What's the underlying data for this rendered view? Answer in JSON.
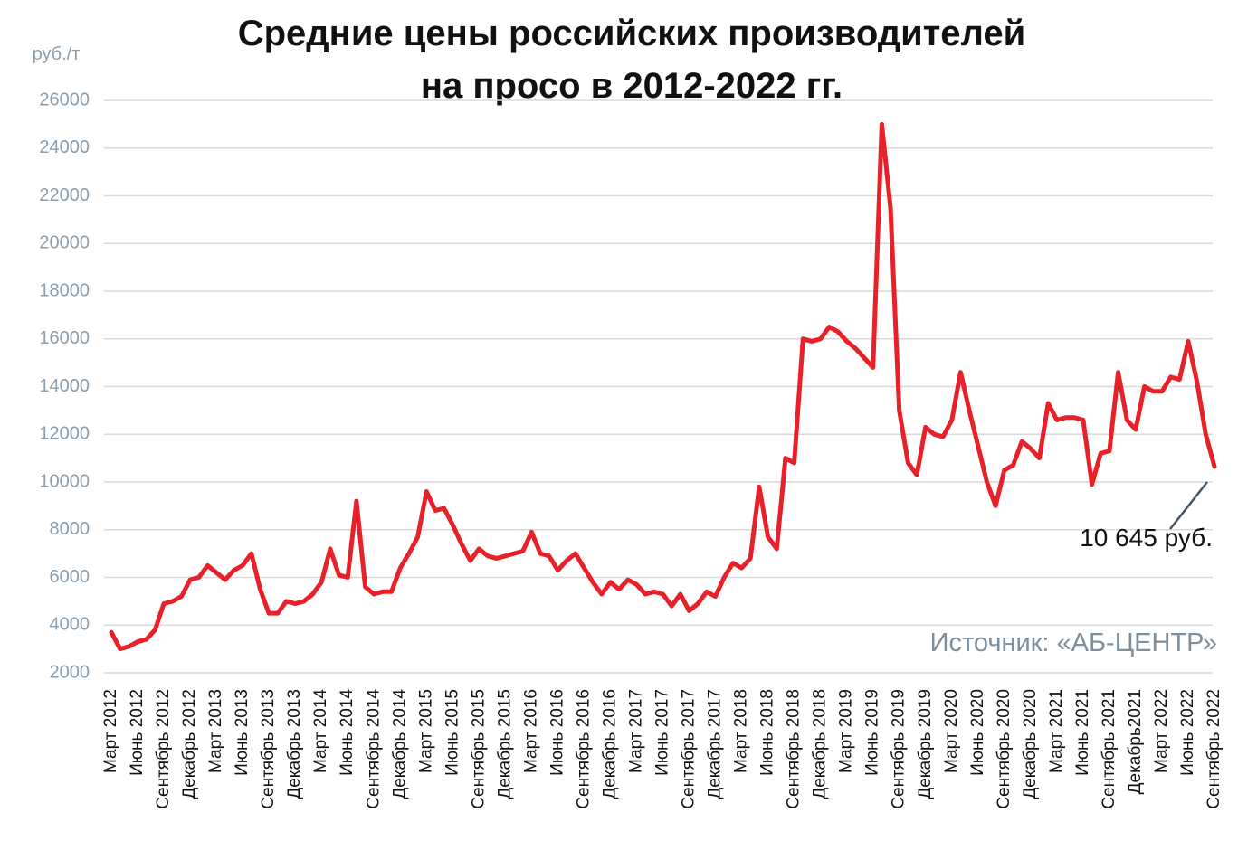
{
  "chart_data": {
    "type": "line",
    "title": [
      "Средние цены российских производителей",
      "на просо в 2012-2022 гг."
    ],
    "y_axis_label": "руб./т",
    "source": "Источник: «АБ-ЦЕНТР»",
    "color": "#e8202a",
    "grid": true,
    "ylim": [
      2000,
      26000
    ],
    "yticks": [
      2000,
      4000,
      6000,
      8000,
      10000,
      12000,
      14000,
      16000,
      18000,
      20000,
      22000,
      24000,
      26000
    ],
    "categories": [
      "Март 2012",
      null,
      null,
      "Июнь 2012",
      null,
      null,
      "Сентябрь 2012",
      null,
      null,
      "Декабрь 2012",
      null,
      null,
      "Март 2013",
      null,
      null,
      "Июнь 2013",
      null,
      null,
      "Сентябрь 2013",
      null,
      null,
      "Декабрь 2013",
      null,
      null,
      "Март 2014",
      null,
      null,
      "Июнь 2014",
      null,
      null,
      "Сентябрь 2014",
      null,
      null,
      "Декабрь 2014",
      null,
      null,
      "Март 2015",
      null,
      null,
      "Июнь 2015",
      null,
      null,
      "Сентябрь 2015",
      null,
      null,
      "Декабрь 2015",
      null,
      null,
      "Март 2016",
      null,
      null,
      "Июнь 2016",
      null,
      null,
      "Сентябрь 2016",
      null,
      null,
      "Декабрь 2016",
      null,
      null,
      "Март 2017",
      null,
      null,
      "Июнь 2017",
      null,
      null,
      "Сентябрь 2017",
      null,
      null,
      "Декабрь 2017",
      null,
      null,
      "Март 2018",
      null,
      null,
      "Июнь 2018",
      null,
      null,
      "Сентябрь 2018",
      null,
      null,
      "Декабрь 2018",
      null,
      null,
      "Март 2019",
      null,
      null,
      "Июнь 2019",
      null,
      null,
      "Сентябрь 2019",
      null,
      null,
      "Декабрь 2019",
      null,
      null,
      "Март 2020",
      null,
      null,
      "Июнь 2020",
      null,
      null,
      "Сентябрь 2020",
      null,
      null,
      "Декабрь 2020",
      null,
      null,
      "Март 2021",
      null,
      null,
      "Июнь 2021",
      null,
      null,
      "Сентябрь 2021",
      null,
      null,
      "Декабрь2021",
      null,
      null,
      "Март 2022",
      null,
      null,
      "Июнь 2022",
      null,
      null,
      "Сентябрь 2022"
    ],
    "values": [
      3700,
      3000,
      3100,
      3300,
      3400,
      3800,
      4900,
      5000,
      5200,
      5900,
      6000,
      6500,
      6200,
      5900,
      6300,
      6500,
      7000,
      5500,
      4500,
      4500,
      5000,
      4900,
      5000,
      5300,
      5800,
      7200,
      6100,
      6000,
      9200,
      5600,
      5300,
      5400,
      5400,
      6400,
      7000,
      7700,
      9600,
      8800,
      8900,
      8200,
      7400,
      6700,
      7200,
      6900,
      6800,
      6900,
      7000,
      7100,
      7900,
      7000,
      6900,
      6300,
      6700,
      7000,
      6400,
      5800,
      5300,
      5800,
      5500,
      5900,
      5700,
      5300,
      5400,
      5300,
      4800,
      5300,
      4600,
      4900,
      5400,
      5200,
      6000,
      6600,
      6400,
      6800,
      9800,
      7700,
      7200,
      11000,
      10800,
      16000,
      15900,
      16000,
      16500,
      16300,
      15900,
      15600,
      15200,
      14800,
      25000,
      21500,
      13000,
      10800,
      10300,
      12300,
      12000,
      11900,
      12600,
      14600,
      13000,
      11500,
      10000,
      9000,
      10500,
      10700,
      11700,
      11400,
      11000,
      13300,
      12600,
      12700,
      12700,
      12600,
      9900,
      11200,
      11300,
      14600,
      12600,
      12200,
      14000,
      13800,
      13800,
      14400,
      14300,
      15900,
      14200,
      12000,
      10645
    ],
    "value_labels": [
      null,
      null,
      null,
      null,
      null,
      null,
      null,
      null,
      null,
      null,
      null,
      null,
      null,
      null,
      null,
      null,
      null,
      null,
      null,
      null,
      null,
      null,
      null,
      null,
      null,
      null,
      null,
      null,
      null,
      null,
      null,
      null,
      null,
      null,
      null,
      null,
      null,
      null,
      null,
      null,
      null,
      null,
      null,
      null,
      null,
      null,
      null,
      null,
      null,
      null,
      null,
      null,
      null,
      null,
      null,
      null,
      null,
      null,
      null,
      null,
      null,
      null,
      null,
      null,
      null,
      null,
      null,
      null,
      null,
      null,
      null,
      null,
      null,
      null,
      null,
      null,
      null,
      null,
      null,
      null,
      null,
      null,
      null,
      null,
      null,
      null,
      null,
      null,
      null,
      null,
      null,
      null,
      null,
      null,
      null,
      null,
      null,
      null,
      null,
      null,
      null,
      null,
      null,
      null,
      null,
      null,
      null,
      null,
      null,
      null,
      null,
      null,
      null,
      null,
      null,
      null,
      null,
      null,
      null,
      null,
      null,
      null,
      null,
      null,
      null,
      null,
      "10 645 руб."
    ]
  }
}
